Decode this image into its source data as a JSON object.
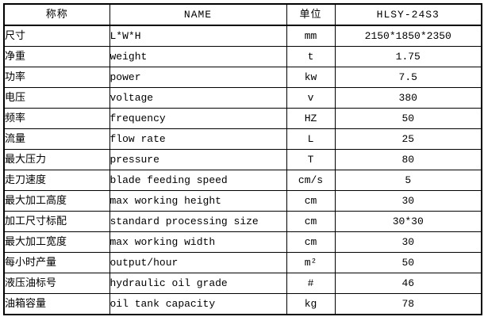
{
  "table": {
    "headers": [
      "称称",
      "NAME",
      "单位",
      "HLSY-24S3"
    ],
    "rows": [
      [
        "尺寸",
        "L*W*H",
        "mm",
        "2150*1850*2350"
      ],
      [
        "净重",
        "weight",
        "t",
        "1.75"
      ],
      [
        "功率",
        "power",
        "kw",
        "7.5"
      ],
      [
        "电压",
        "voltage",
        "v",
        "380"
      ],
      [
        "频率",
        "frequency",
        "HZ",
        "50"
      ],
      [
        "流量",
        "flow rate",
        "L",
        "25"
      ],
      [
        "最大压力",
        "pressure",
        "T",
        "80"
      ],
      [
        "走刀速度",
        "blade feeding speed",
        "cm/s",
        "5"
      ],
      [
        "最大加工高度",
        "max working height",
        "cm",
        "30"
      ],
      [
        "加工尺寸标配",
        "standard processing size",
        "cm",
        "30*30"
      ],
      [
        "最大加工宽度",
        "max working width",
        "cm",
        "30"
      ],
      [
        "每小时产量",
        "output/hour",
        "m²",
        "50"
      ],
      [
        "液压油标号",
        "hydraulic oil grade",
        "#",
        "46"
      ],
      [
        "油箱容量",
        "oil tank capacity",
        "kg",
        "78"
      ]
    ]
  },
  "colors": {
    "border": "#000000",
    "background": "#ffffff",
    "text": "#000000"
  }
}
